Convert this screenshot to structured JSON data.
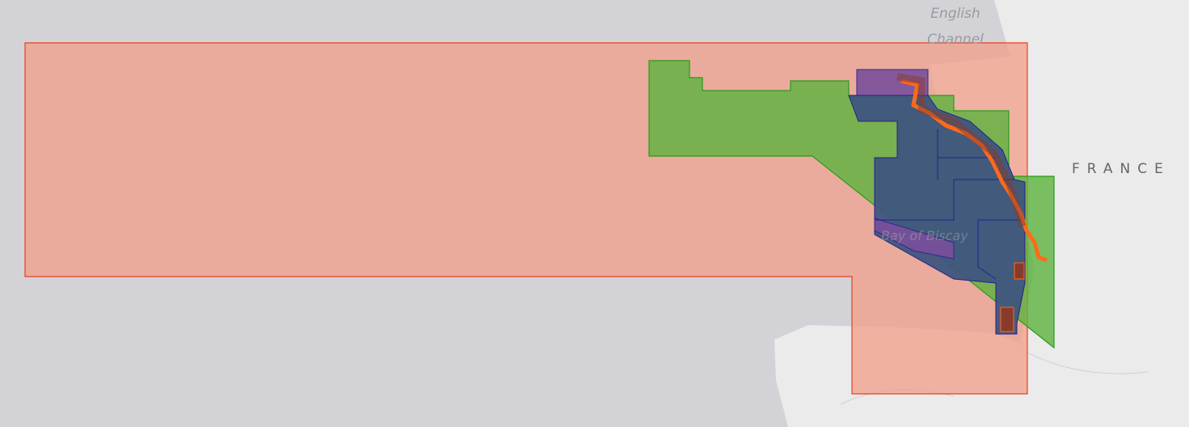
{
  "map": {
    "labels": {
      "sea": [
        "English",
        "Channel"
      ],
      "country": "FRANCE",
      "bay": "Bay of Biscay"
    }
  }
}
